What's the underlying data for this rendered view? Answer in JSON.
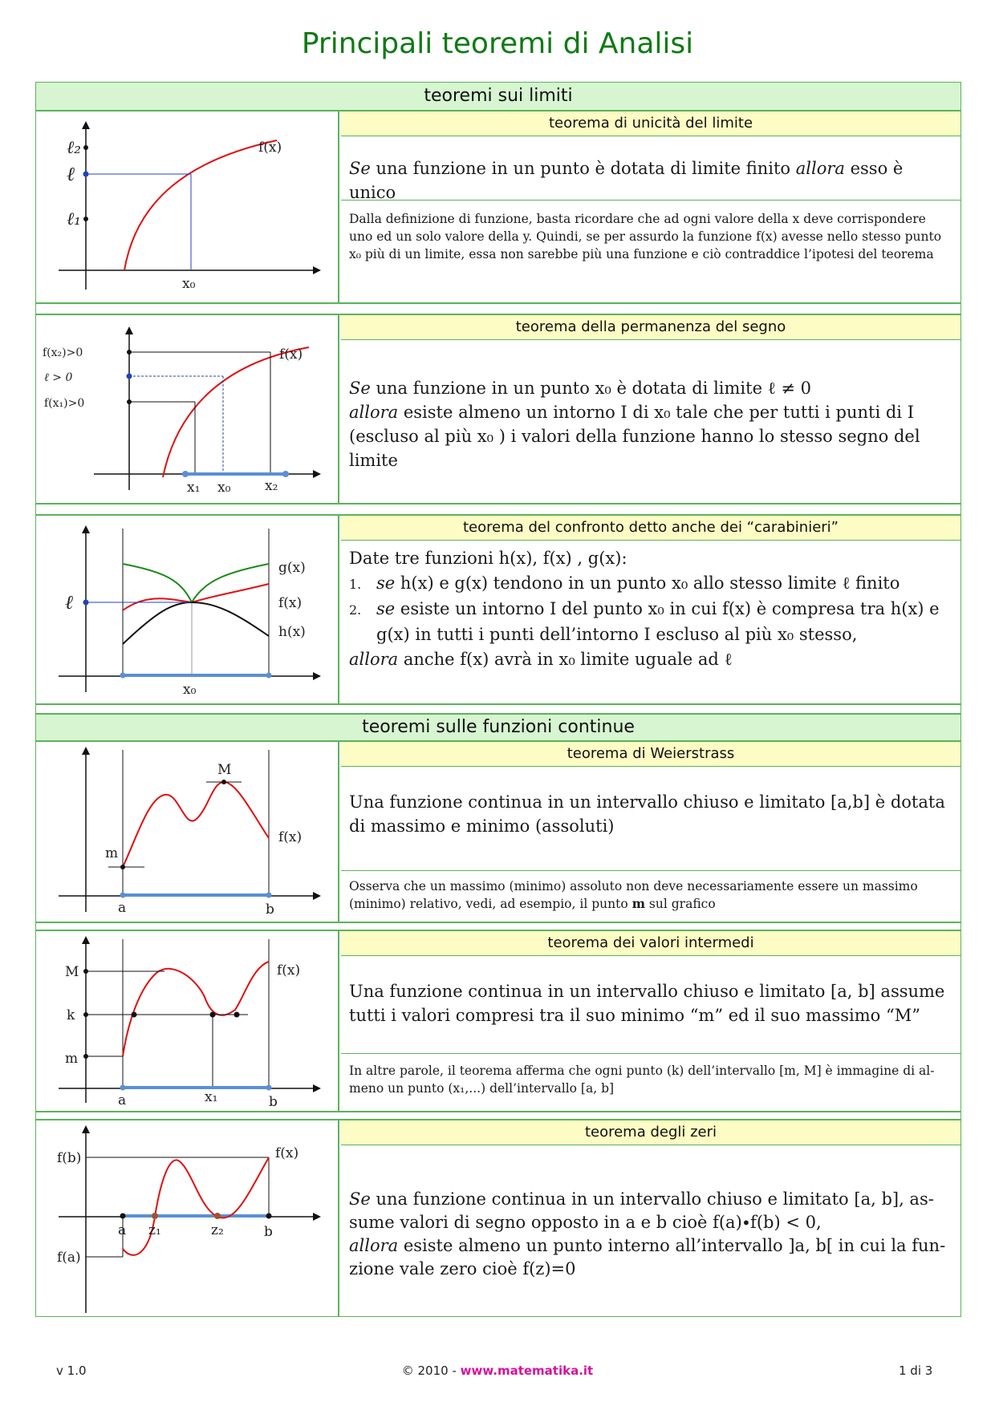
{
  "title": "Principali teoremi di Analisi",
  "sections": {
    "limits": "teoremi sui limiti",
    "continuous": "teoremi sulle funzioni continue"
  },
  "theorems": {
    "unicita": {
      "title": "teorema di unicità del limite",
      "stmt_a": "Se",
      "stmt_b": " una funzione in un punto è dotata di limite finito ",
      "stmt_c": "allora",
      "stmt_d": " esso è unico",
      "note_1": "Dalla definizione di funzione,  basta ricordare che ad ogni valore della x deve corrispondere",
      "note_2": "uno ed un solo valore della y. Quindi, se per assurdo la funzione f(x) avesse nello stesso punto",
      "note_3": "x₀ più di un limite,  essa non sarebbe più una funzione e ciò contraddice l’ipotesi del teorema",
      "graph": {
        "l2": "ℓ₂",
        "l": "ℓ",
        "l1": "ℓ₁",
        "fx": "f(x)",
        "x0": "x₀"
      }
    },
    "permanenza": {
      "title": "teorema della permanenza del segno",
      "line1_a": "Se",
      "line1_b": "  una funzione in un punto x₀ è dotata di limite ℓ ≠ 0",
      "line2_a": "allora",
      "line2_b": " esiste almeno un intorno I di x₀ tale che per tutti i punti di I",
      "line3": "(escluso al più  x₀ ) i valori della funzione hanno lo stesso segno del",
      "line4": "limite",
      "graph": {
        "fx2": "f(x₂)>0",
        "lpos": "ℓ > 0",
        "fx1": "f(x₁)>0",
        "fx": "f(x)",
        "x1": "x₁",
        "x0": "x₀",
        "x2": "x₂"
      }
    },
    "confronto": {
      "title": "teorema del confronto detto anche dei “carabinieri”",
      "intro": "Date tre funzioni h(x), f(x) , g(x):",
      "n1": "1.",
      "item1_a": "se",
      "item1_b": "  h(x) e g(x) tendono in un punto  x₀  allo stesso limite ℓ finito",
      "n2": "2.",
      "item2_a": "se",
      "item2_b": "  esiste un intorno I del punto x₀ in cui f(x) è compresa tra h(x) e",
      "item2_c": "g(x) in tutti i punti dell’intorno I escluso al più  x₀ stesso,",
      "concl_a": "allora",
      "concl_b": " anche f(x) avrà in x₀ limite uguale ad ℓ",
      "graph": {
        "l": "ℓ",
        "gx": "g(x)",
        "fx": "f(x)",
        "hx": "h(x)",
        "x0": "x₀"
      }
    },
    "weierstrass": {
      "title": "teorema di Weierstrass",
      "stmt_1": "Una funzione continua in un intervallo chiuso e limitato [a,b] è dotata",
      "stmt_2": "di massimo e minimo (assoluti)",
      "note_1": "Osserva che un massimo (minimo) assoluto non deve necessariamente  essere un massimo",
      "note_2a": "(minimo) relativo,  vedi, ad esempio,  il punto ",
      "note_2b": "m",
      "note_2c": " sul grafico",
      "graph": {
        "M": "M",
        "m": "m",
        "fx": "f(x)",
        "a": "a",
        "b": "b"
      }
    },
    "intermedi": {
      "title": "teorema dei valori intermedi",
      "stmt_1": "Una funzione continua in un intervallo chiuso e limitato [a, b] assume",
      "stmt_2": "tutti i valori compresi tra il suo minimo “m” ed il suo massimo “M”",
      "note_1": "In altre parole, il teorema afferma che ogni punto (k) dell’intervallo [m, M] è immagine di al-",
      "note_2": "meno un punto (x₁,...) dell’intervallo [a, b]",
      "graph": {
        "M": "M",
        "k": "k",
        "m": "m",
        "fx": "f(x)",
        "a": "a",
        "x1": "x₁",
        "b": "b"
      }
    },
    "zeri": {
      "title": "teorema degli zeri",
      "l1_a": "Se",
      "l1_b": "  una funzione continua in un intervallo chiuso e limitato [a, b], as-",
      "l2": "sume valori di segno opposto in a e b cioè f(a)∙f(b) < 0,",
      "l3_a": "allora",
      "l3_b": "  esiste almeno un punto interno all’intervallo ]a, b[ in cui la fun-",
      "l4": "zione vale zero cioè f(z)=0",
      "graph": {
        "fb": "f(b)",
        "fa": "f(a)",
        "fx": "f(x)",
        "a": "a",
        "z1": "z₁",
        "z2": "z₂",
        "b": "b"
      }
    }
  },
  "footer": {
    "version": "v 1.0",
    "copyright": "© 2010 - ",
    "site": "www.matematika.it",
    "page": "1 di 3"
  },
  "colors": {
    "title": "#0f7a15",
    "section_bg": "#d6f5d0",
    "theorem_bg": "#fdfcc4",
    "border": "#5bb35b",
    "site": "#d4129e"
  }
}
